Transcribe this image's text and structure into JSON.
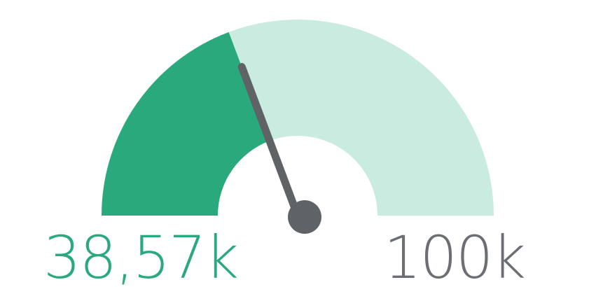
{
  "chart_data": {
    "type": "gauge",
    "value": 38570,
    "min": 0,
    "max": 100000,
    "value_label": "38,57k",
    "max_label": "100k",
    "colors": {
      "filled": "#2aaa7c",
      "remaining": "#caebdf",
      "needle": "#5f6366",
      "value_text": "#2aaa7c",
      "max_text": "#6b6e72"
    }
  }
}
